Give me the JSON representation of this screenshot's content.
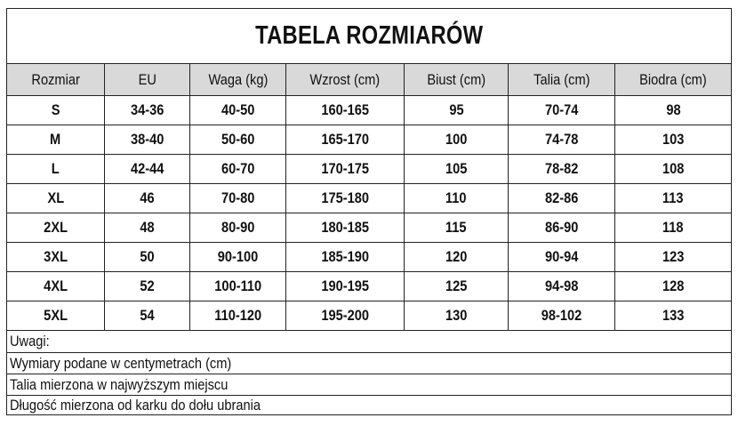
{
  "title": "TABELA ROZMIARÓW",
  "columns": [
    "Rozmiar",
    "EU",
    "Waga (kg)",
    "Wzrost (cm)",
    "Biust (cm)",
    "Talia (cm)",
    "Biodra (cm)"
  ],
  "rows": [
    [
      "S",
      "34-36",
      "40-50",
      "160-165",
      "95",
      "70-74",
      "98"
    ],
    [
      "M",
      "38-40",
      "50-60",
      "165-170",
      "100",
      "74-78",
      "103"
    ],
    [
      "L",
      "42-44",
      "60-70",
      "170-175",
      "105",
      "78-82",
      "108"
    ],
    [
      "XL",
      "46",
      "70-80",
      "175-180",
      "110",
      "82-86",
      "113"
    ],
    [
      "2XL",
      "48",
      "80-90",
      "180-185",
      "115",
      "86-90",
      "118"
    ],
    [
      "3XL",
      "50",
      "90-100",
      "185-190",
      "120",
      "90-94",
      "123"
    ],
    [
      "4XL",
      "52",
      "100-110",
      "190-195",
      "125",
      "94-98",
      "128"
    ],
    [
      "5XL",
      "54",
      "110-120",
      "195-200",
      "130",
      "98-102",
      "133"
    ]
  ],
  "notes": [
    "Uwagi:",
    "Wymiary podane w centymetrach (cm)",
    "Talia mierzona w najwyższym miejscu",
    "Długość mierzona od karku do dołu ubrania"
  ],
  "colors": {
    "header_bg": "#d9d9d9",
    "border": "#222222"
  }
}
